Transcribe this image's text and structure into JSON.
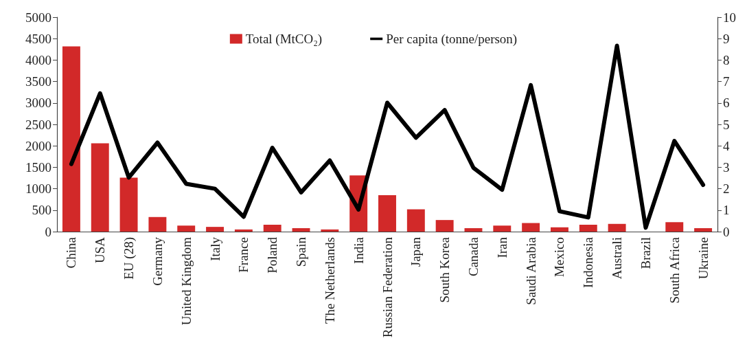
{
  "chart_data": {
    "type": "bar",
    "categories": [
      "China",
      "USA",
      "EU (28)",
      "Germany",
      "United Kingdom",
      "Italy",
      "France",
      "Poland",
      "Spain",
      "The Netherlands",
      "India",
      "Russian Federation",
      "Japan",
      "South Korea",
      "Canada",
      "Iran",
      "Saudi Arabia",
      "Mexico",
      "Indonesia",
      "Australi",
      "Brazil",
      "South Africa",
      "Ukraine"
    ],
    "series": [
      {
        "name": "Total (MtCO₂)",
        "color": "#d22929",
        "values": [
          4320,
          2060,
          1260,
          340,
          140,
          110,
          50,
          160,
          80,
          50,
          1310,
          850,
          520,
          270,
          80,
          140,
          200,
          100,
          160,
          180,
          null,
          220,
          80
        ]
      },
      {
        "name": "Per capita (tonne/person)",
        "type": "line",
        "axis": "y2",
        "color": "#000000",
        "values": [
          3.15,
          6.45,
          2.52,
          4.15,
          2.23,
          2.0,
          0.69,
          3.91,
          1.83,
          3.32,
          1.03,
          6.01,
          4.38,
          5.67,
          2.98,
          1.95,
          6.83,
          0.95,
          0.66,
          8.67,
          0.18,
          4.23,
          2.18
        ]
      }
    ],
    "ylim": [
      0,
      5000
    ],
    "yticks": [
      0,
      500,
      1000,
      1500,
      2000,
      2500,
      3000,
      3500,
      4000,
      4500,
      5000
    ],
    "y2lim": [
      0,
      10
    ],
    "y2ticks": [
      0,
      1,
      2,
      3,
      4,
      5,
      6,
      7,
      8,
      9,
      10
    ],
    "grid": false,
    "legend": "top",
    "marker": "none",
    "line_style": "solid"
  }
}
